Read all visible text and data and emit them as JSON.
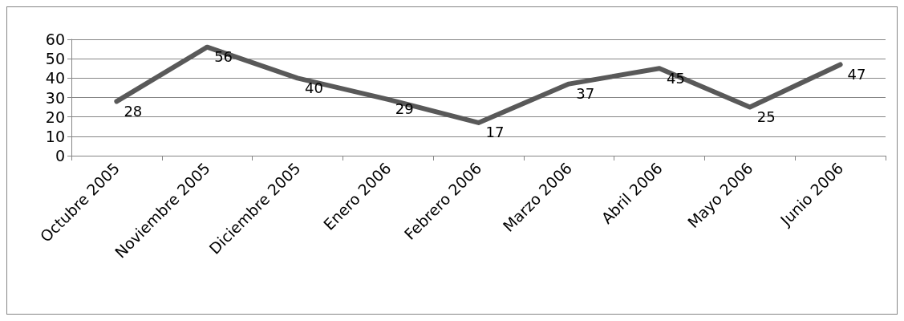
{
  "chart_data": {
    "type": "line",
    "categories": [
      "Octubre 2005",
      "Noviembre 2005",
      "Diciembre 2005",
      "Enero 2006",
      "Febrero 2006",
      "Marzo 2006",
      "Abril 2006",
      "Mayo 2006",
      "Junio 2006"
    ],
    "series": [
      {
        "color": "#595959",
        "values": [
          28,
          56,
          40,
          29,
          17,
          37,
          45,
          25,
          47
        ]
      }
    ],
    "ylim": [
      0,
      60
    ],
    "yticks": [
      0,
      10,
      20,
      30,
      40,
      50,
      60
    ],
    "grid": "y",
    "data_labels": true,
    "marker": "none",
    "line_style": "solid"
  }
}
